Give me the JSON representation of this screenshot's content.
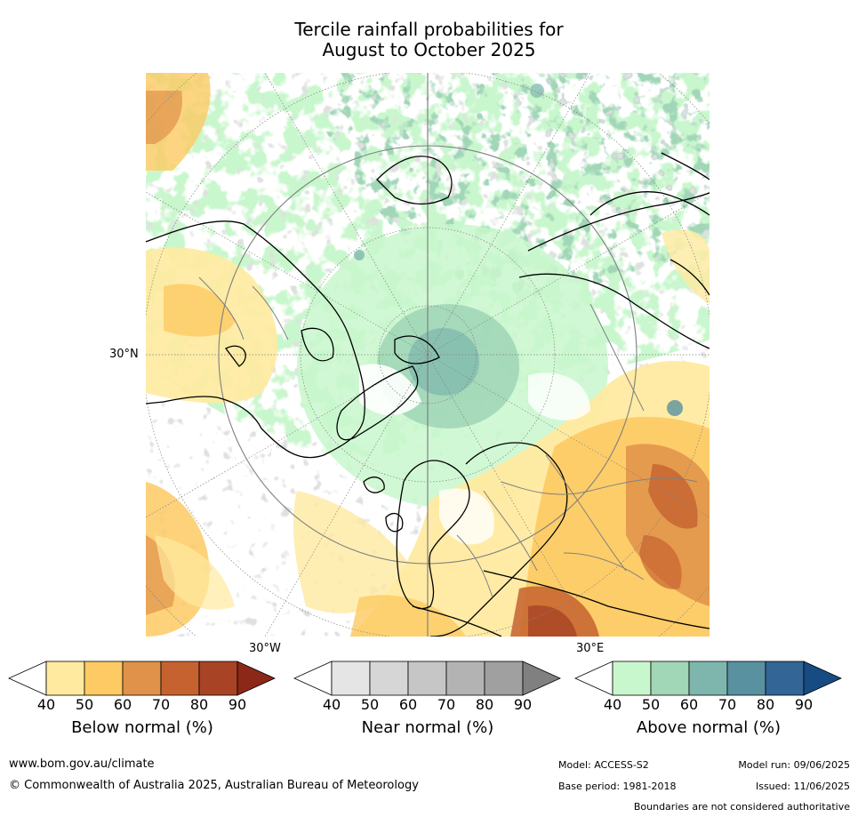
{
  "title": {
    "line1": "Tercile rainfall probabilities for",
    "line2": "August to October 2025"
  },
  "map": {
    "projection": "north-polar-stereographic",
    "lat_label": "30°N",
    "lon_labels": [
      "30°W",
      "30°E"
    ],
    "colors": {
      "ocean_land_base": "#ffffff",
      "coastline": "#000000",
      "borders": "#808080",
      "gridlines": "#808080"
    }
  },
  "colorbars": [
    {
      "name": "Below normal (%)",
      "ticks": [
        "40",
        "50",
        "60",
        "70",
        "80",
        "90"
      ],
      "colors": [
        "#ffffff",
        "#ffeaa0",
        "#fdca63",
        "#e0924a",
        "#c6622f",
        "#a84425",
        "#8b2818"
      ]
    },
    {
      "name": "Near normal (%)",
      "ticks": [
        "40",
        "50",
        "60",
        "70",
        "80",
        "90"
      ],
      "colors": [
        "#ffffff",
        "#e5e5e5",
        "#d6d6d6",
        "#c6c6c6",
        "#b3b3b3",
        "#a0a0a0",
        "#808080"
      ]
    },
    {
      "name": "Above normal (%)",
      "ticks": [
        "40",
        "50",
        "60",
        "70",
        "80",
        "90"
      ],
      "colors": [
        "#ffffff",
        "#c9f7cd",
        "#a1d6b7",
        "#7eb6ad",
        "#5991a1",
        "#336596",
        "#174c83"
      ]
    }
  ],
  "footer": {
    "website": "www.bom.gov.au/climate",
    "copyright": "© Commonwealth of Australia 2025, Australian Bureau of Meteorology",
    "model": "Model: ACCESS-S2",
    "base_period": "Base period: 1981-2018",
    "model_run": "Model run: 09/06/2025",
    "issued": "Issued: 11/06/2025",
    "disclaimer": "Boundaries are not considered authoritative"
  }
}
